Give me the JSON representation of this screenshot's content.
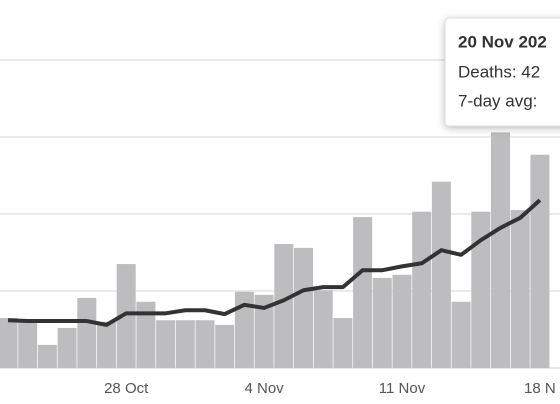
{
  "chart_data": {
    "type": "bar",
    "categories": [
      null,
      null,
      null,
      null,
      null,
      null,
      "28 Oct",
      null,
      null,
      null,
      null,
      null,
      null,
      "4 Nov",
      null,
      null,
      null,
      null,
      null,
      null,
      "11 Nov",
      null,
      null,
      null,
      null,
      null,
      null,
      "18 N"
    ],
    "series": [
      {
        "color": "#bdbdbf",
        "values": [
          65,
          62,
          30,
          52,
          91,
          60,
          135,
          86,
          62,
          62,
          62,
          56,
          99,
          95,
          161,
          156,
          101,
          65,
          196,
          117,
          121,
          203,
          242,
          86,
          203,
          306,
          205,
          277
        ]
      },
      {
        "type": "line",
        "color": "#333333",
        "values": [
          62,
          61,
          61,
          61,
          61,
          56,
          71,
          71,
          71,
          75,
          75,
          70,
          82,
          78,
          88,
          101,
          105,
          105,
          127,
          127,
          132,
          136,
          153,
          147,
          166,
          182,
          195,
          218
        ]
      }
    ],
    "ylim": [
      0,
      400
    ],
    "yticks": [
      0,
      100,
      200,
      300,
      400
    ],
    "grid": true,
    "tooltip": {
      "title": "20 Nov 202",
      "lines": [
        "Deaths: 42",
        "7-day avg:"
      ]
    }
  }
}
